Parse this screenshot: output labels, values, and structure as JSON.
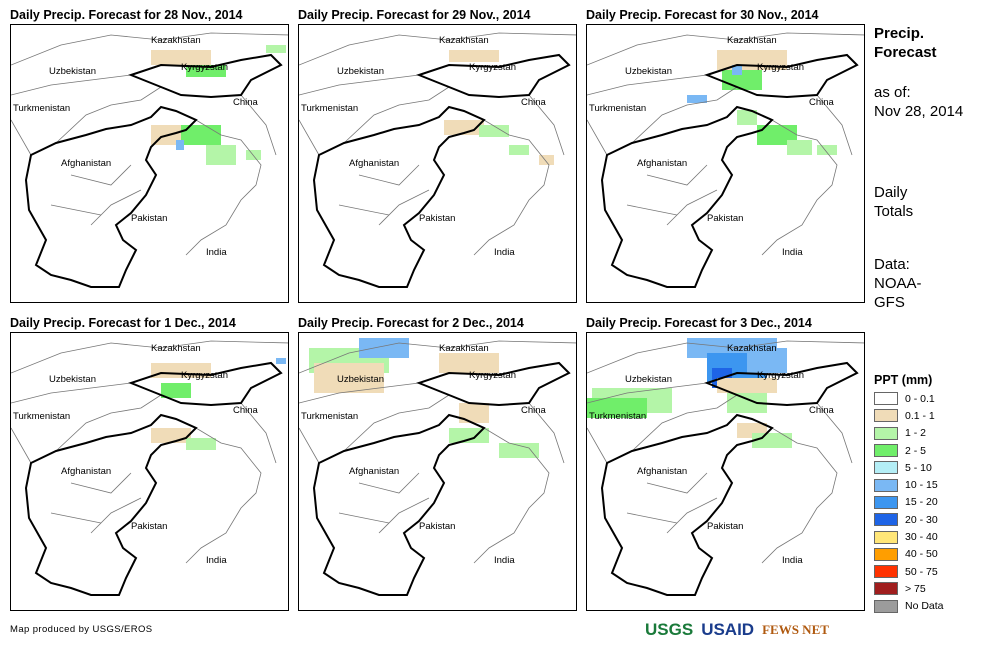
{
  "panels": [
    {
      "title": "Daily Precip. Forecast for 28 Nov., 2014"
    },
    {
      "title": "Daily Precip. Forecast for 29 Nov., 2014"
    },
    {
      "title": "Daily Precip. Forecast for 30 Nov., 2014"
    },
    {
      "title": "Daily Precip. Forecast for 1 Dec., 2014"
    },
    {
      "title": "Daily Precip. Forecast for 2 Dec., 2014"
    },
    {
      "title": "Daily Precip. Forecast for 3 Dec., 2014"
    }
  ],
  "map_labels": {
    "kazakhstan": "Kazakhstan",
    "uzbekistan": "Uzbekistan",
    "kyrgyzstan": "Kyrgyzstan",
    "turkmenistan": "Turkmenistan",
    "china": "China",
    "afghanistan": "Afghanistan",
    "pakistan": "Pakistan",
    "india": "India"
  },
  "side": {
    "title1": "Precip.",
    "title2": "Forecast",
    "asof1": "as of:",
    "asof2": "Nov 28, 2014",
    "daily1": "Daily",
    "daily2": "Totals",
    "data1": "Data:",
    "data2": "NOAA-",
    "data3": "GFS"
  },
  "legend": {
    "title": "PPT (mm)",
    "items": [
      {
        "label": "0 - 0.1",
        "color": "#ffffff"
      },
      {
        "label": "0.1 - 1",
        "color": "#f0dcb8"
      },
      {
        "label": "1 - 2",
        "color": "#b4f5a8"
      },
      {
        "label": "2 - 5",
        "color": "#70ee6a"
      },
      {
        "label": "5 - 10",
        "color": "#b4eef6"
      },
      {
        "label": "10 - 15",
        "color": "#7ab8f4"
      },
      {
        "label": "15 - 20",
        "color": "#3c96f0"
      },
      {
        "label": "20 - 30",
        "color": "#1e64e6"
      },
      {
        "label": "30 - 40",
        "color": "#ffe678"
      },
      {
        "label": "40 - 50",
        "color": "#ff9e00"
      },
      {
        "label": "50 - 75",
        "color": "#ff3200"
      },
      {
        "label": "> 75",
        "color": "#a01e1e"
      },
      {
        "label": "No Data",
        "color": "#9c9c9c"
      }
    ]
  },
  "credit": "Map produced by USGS/EROS",
  "logos": {
    "usgs": "USGS",
    "usaid": "USAID",
    "fews": "FEWS NET"
  }
}
